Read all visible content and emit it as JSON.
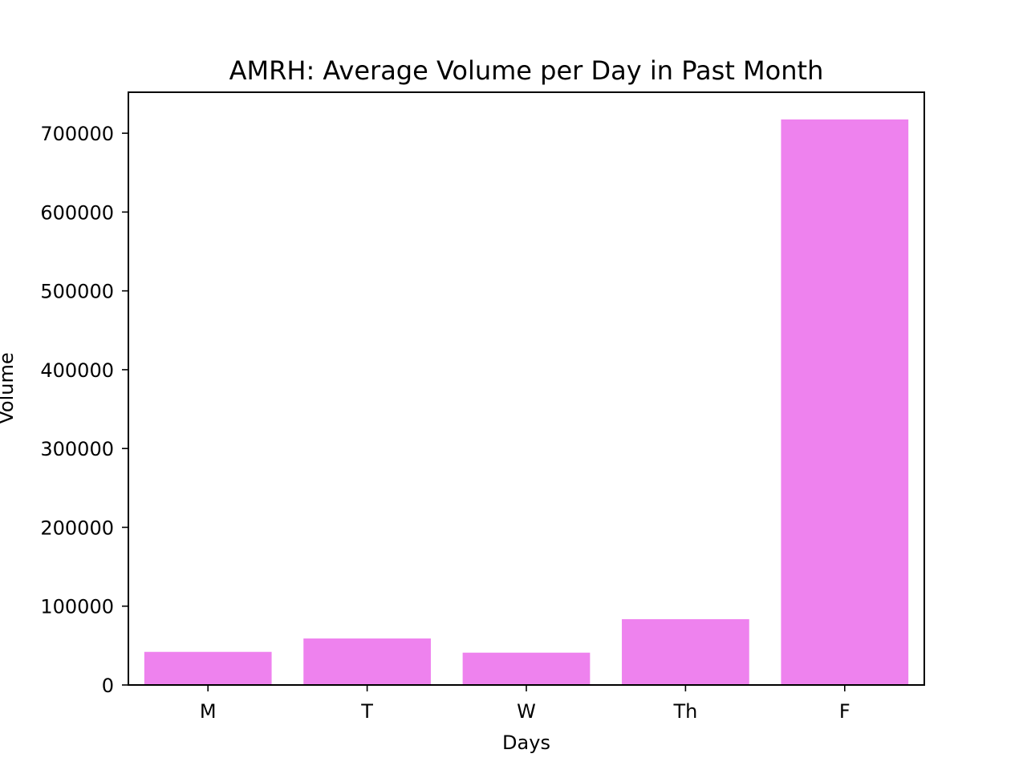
{
  "chart_data": {
    "type": "bar",
    "title": "AMRH: Average Volume per Day in Past Month",
    "xlabel": "Days",
    "ylabel": "Volume",
    "categories": [
      "M",
      "T",
      "W",
      "Th",
      "F"
    ],
    "values": [
      42000,
      59000,
      41000,
      83500,
      717500
    ],
    "ylim": [
      0,
      752000
    ],
    "yticks": [
      0,
      100000,
      200000,
      300000,
      400000,
      500000,
      600000,
      700000
    ],
    "ytick_labels": [
      "0",
      "100000",
      "200000",
      "300000",
      "400000",
      "500000",
      "600000",
      "700000"
    ],
    "grid": false,
    "legend": "none",
    "bar_color": "#ee82ee"
  }
}
